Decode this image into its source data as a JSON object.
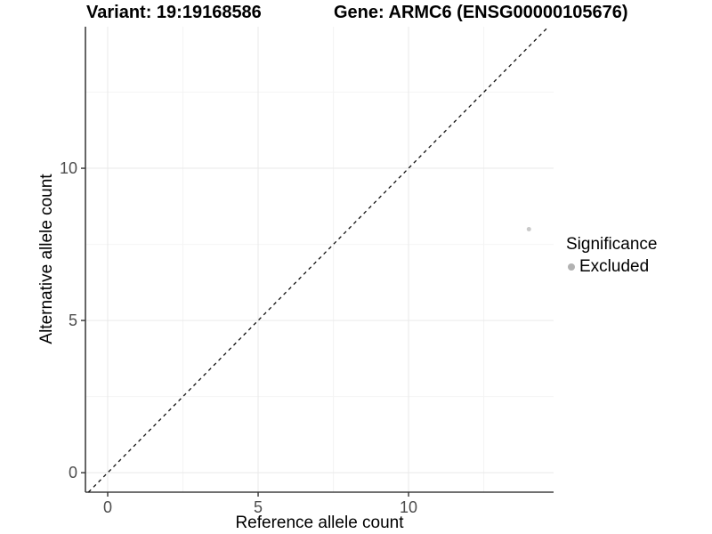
{
  "header": {
    "variant_title": "Variant: 19:19168586",
    "gene_title": "Gene: ARMC6 (ENSG00000105676)"
  },
  "legend": {
    "title": "Significance",
    "items": [
      {
        "label": "Excluded",
        "swatch_color": "#b2b2b2"
      }
    ]
  },
  "chart_data": {
    "type": "scatter",
    "title_left": "Variant: 19:19168586",
    "title_right": "Gene: ARMC6 (ENSG00000105676)",
    "xlabel": "Reference allele count",
    "ylabel": "Alternative allele count",
    "xlim": [
      -0.74,
      14.82
    ],
    "ylim": [
      -0.64,
      14.65
    ],
    "x_ticks": [
      0,
      5,
      10
    ],
    "y_ticks": [
      0,
      5,
      10
    ],
    "x_tick_labels": [
      "0",
      "5",
      "10"
    ],
    "y_tick_labels": [
      "0",
      "5",
      "10"
    ],
    "x_minor_ticks": [
      2.5,
      7.5,
      12.5
    ],
    "y_minor_ticks": [
      2.5,
      7.5,
      12.5
    ],
    "grid": "major+minor",
    "legend_position": "right",
    "series": [
      {
        "name": "Excluded",
        "color": "#c9c9c9",
        "points": [
          [
            14,
            8
          ]
        ],
        "point_radius": 2.5
      }
    ],
    "reference_line": {
      "label": "identity",
      "slope": 1,
      "intercept": 0,
      "style": "dashed",
      "color": "#111111"
    }
  },
  "style": {
    "background": "#ffffff",
    "point_color": "#c9c9c9",
    "legend_dot": "#b2b2b2",
    "grid_major": "#e9e9e9",
    "grid_minor": "#f4f4f4",
    "axis_line": "#404040",
    "tick_color": "#333333",
    "tick_label_color": "#4d4d4d"
  }
}
